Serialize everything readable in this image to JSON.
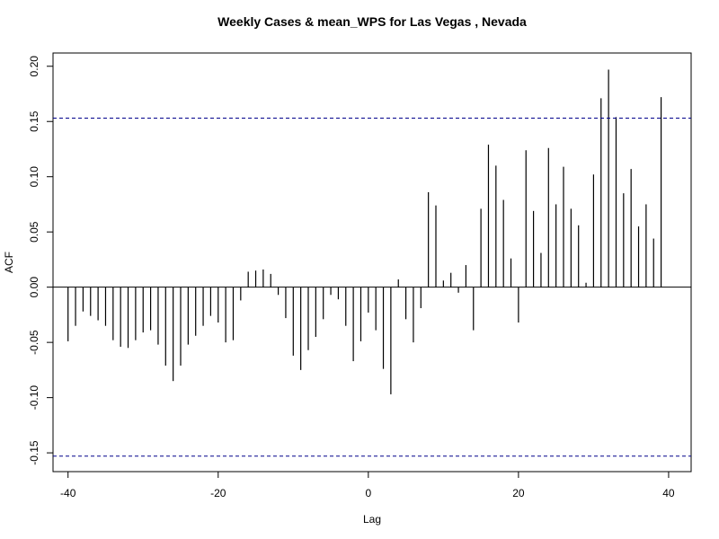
{
  "chart_data": {
    "type": "bar",
    "title": "Weekly Cases & mean_WPS for Las Vegas , Nevada",
    "xlabel": "Lag",
    "ylabel": "ACF",
    "xlim": [
      -42,
      43
    ],
    "ylim": [
      -0.167,
      0.212
    ],
    "x_ticks": [
      -40,
      -20,
      0,
      20,
      40
    ],
    "x_tick_labels": [
      "-40",
      "-20",
      "0",
      "20",
      "40"
    ],
    "y_ticks": [
      -0.15,
      -0.1,
      -0.05,
      0.0,
      0.05,
      0.1,
      0.15,
      0.2
    ],
    "y_tick_labels": [
      "-0.15",
      "-0.10",
      "-0.05",
      "0.00",
      "0.05",
      "0.10",
      "0.15",
      "0.20"
    ],
    "confidence_bounds": [
      0.153,
      -0.153
    ],
    "confidence_color": "#00008b",
    "bar_color": "#000000",
    "grid": false,
    "lags": [
      -40,
      -39,
      -38,
      -37,
      -36,
      -35,
      -34,
      -33,
      -32,
      -31,
      -30,
      -29,
      -28,
      -27,
      -26,
      -25,
      -24,
      -23,
      -22,
      -21,
      -20,
      -19,
      -18,
      -17,
      -16,
      -15,
      -14,
      -13,
      -12,
      -11,
      -10,
      -9,
      -8,
      -7,
      -6,
      -5,
      -4,
      -3,
      -2,
      -1,
      0,
      1,
      2,
      3,
      4,
      5,
      6,
      7,
      8,
      9,
      10,
      11,
      12,
      13,
      14,
      15,
      16,
      17,
      18,
      19,
      20,
      21,
      22,
      23,
      24,
      25,
      26,
      27,
      28,
      29,
      30,
      31,
      32,
      33,
      34,
      35,
      36,
      37,
      38,
      39,
      40
    ],
    "values": [
      -0.049,
      -0.035,
      -0.022,
      -0.026,
      -0.03,
      -0.035,
      -0.048,
      -0.054,
      -0.055,
      -0.048,
      -0.041,
      -0.039,
      -0.052,
      -0.071,
      -0.085,
      -0.071,
      -0.052,
      -0.044,
      -0.035,
      -0.026,
      -0.032,
      -0.05,
      -0.048,
      -0.012,
      0.014,
      0.015,
      0.016,
      0.012,
      -0.007,
      -0.028,
      -0.062,
      -0.075,
      -0.057,
      -0.045,
      -0.029,
      -0.007,
      -0.011,
      -0.035,
      -0.067,
      -0.049,
      -0.023,
      -0.039,
      -0.074,
      -0.097,
      0.007,
      -0.029,
      -0.05,
      -0.019,
      0.086,
      0.074,
      0.006,
      0.013,
      -0.005,
      0.02,
      -0.039,
      0.071,
      0.129,
      0.11,
      0.079,
      0.026,
      -0.032,
      0.124,
      0.069,
      0.031,
      0.126,
      0.075,
      0.109,
      0.071,
      0.056,
      0.004,
      0.102,
      0.171,
      0.197,
      0.154,
      0.085,
      0.107,
      0.055,
      0.075,
      0.044,
      0.172,
      0.0
    ]
  }
}
